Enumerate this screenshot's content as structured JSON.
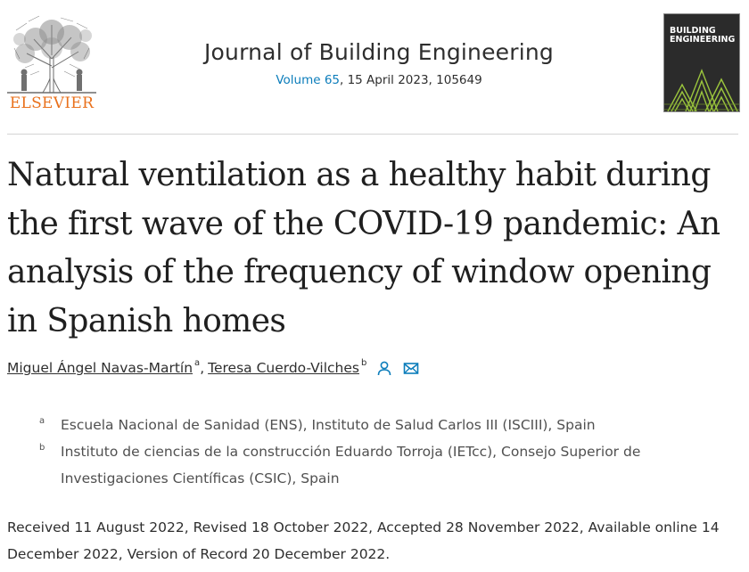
{
  "publisher": {
    "name": "ELSEVIER",
    "brand_color": "#e9711c"
  },
  "journal": {
    "title": "Journal of Building Engineering",
    "volume_link": "Volume 65",
    "issue_info": ", 15 April 2023, 105649",
    "link_color": "#0c7dbb",
    "cover": {
      "line1": "BUILDING",
      "line2": "ENGINEERING",
      "accent": "#9bc53d"
    }
  },
  "article": {
    "title": "Natural ventilation as a healthy habit during the first wave of the COVID-19 pandemic: An analysis of the frequency of window opening in Spanish homes"
  },
  "authors": [
    {
      "name": "Miguel Ángel Navas-Martín",
      "sup": "a"
    },
    {
      "name": "Teresa Cuerdo-Vilches",
      "sup": "b"
    }
  ],
  "author_separator": ",",
  "author_icons": [
    "person-icon",
    "email-icon"
  ],
  "affiliations": [
    {
      "label": "a",
      "text": "Escuela Nacional de Sanidad (ENS), Instituto de Salud Carlos III (ISCIII), Spain"
    },
    {
      "label": "b",
      "text": "Instituto de ciencias de la construcción Eduardo Torroja (IETcc), Consejo Superior de Investigaciones Científicas (CSIC), Spain"
    }
  ],
  "dates": "Received 11 August 2022, Revised 18 October 2022, Accepted 28 November 2022, Available online 14 December 2022, Version of Record 20 December 2022."
}
